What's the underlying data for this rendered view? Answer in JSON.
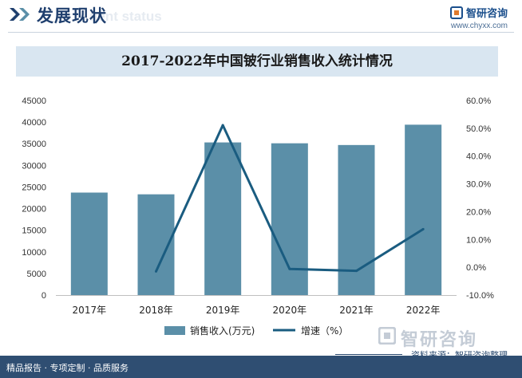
{
  "header": {
    "title": "发展现状",
    "ghost": "nent status"
  },
  "brand": {
    "name": "智研咨询",
    "url": "www.chyxx.com"
  },
  "watermark": {
    "text": "智研咨询"
  },
  "footer": {
    "text": "精品报告 · 专项定制 · 品质服务"
  },
  "source": "资料来源：智研咨询整理",
  "colors": {
    "bar": "#5b8fa8",
    "line": "#1a5c80",
    "title_band": "#d9e6f1",
    "footer": "#2f4e72",
    "header_text": "#1f3f6e"
  },
  "chart_data": {
    "type": "bar",
    "title": "2017-2022年中国铍行业销售收入统计情况",
    "categories": [
      "2017年",
      "2018年",
      "2019年",
      "2020年",
      "2021年",
      "2022年"
    ],
    "series": [
      {
        "name": "销售收入(万元)",
        "type": "bar",
        "axis": "left",
        "values": [
          23700,
          23300,
          35300,
          35100,
          34700,
          39400
        ]
      },
      {
        "name": "增速（%）",
        "type": "line",
        "axis": "right",
        "values": [
          null,
          -1.5,
          51.1,
          -0.6,
          -1.3,
          13.7
        ]
      }
    ],
    "y_left": {
      "min": 0,
      "max": 45000,
      "step": 5000,
      "ticks": [
        "0",
        "5000",
        "10000",
        "15000",
        "20000",
        "25000",
        "30000",
        "35000",
        "40000",
        "45000"
      ]
    },
    "y_right": {
      "min": -10,
      "max": 60,
      "step": 10,
      "ticks": [
        "-10.0%",
        "0.0%",
        "10.0%",
        "20.0%",
        "30.0%",
        "40.0%",
        "50.0%",
        "60.0%"
      ]
    },
    "grid": false,
    "legend": "bottom-center"
  }
}
